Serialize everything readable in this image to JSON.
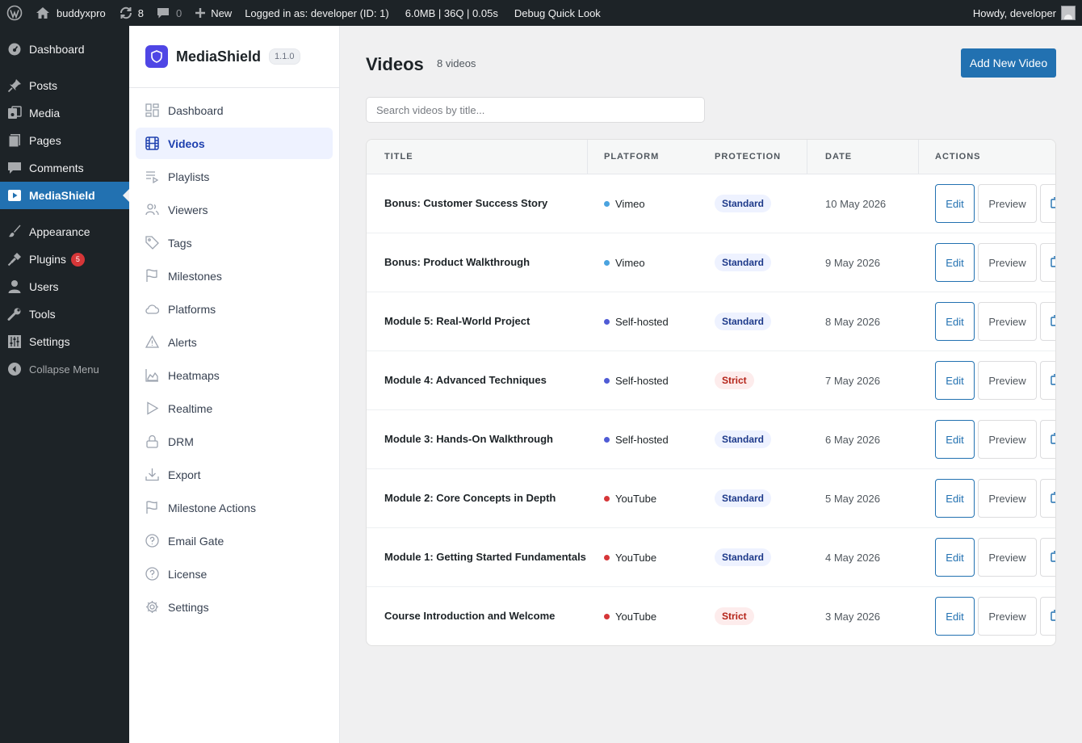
{
  "adminbar": {
    "site_name": "buddyxpro",
    "updates_count": "8",
    "comments_count": "0",
    "new_label": "New",
    "logged_in": "Logged in as: developer (ID: 1)",
    "stats": "6.0MB | 36Q | 0.05s",
    "debug": "Debug Quick Look",
    "howdy": "Howdy, developer"
  },
  "admin_menu": {
    "dashboard": "Dashboard",
    "posts": "Posts",
    "media": "Media",
    "pages": "Pages",
    "comments": "Comments",
    "mediashield": "MediaShield",
    "appearance": "Appearance",
    "plugins": "Plugins",
    "plugins_badge": "5",
    "users": "Users",
    "tools": "Tools",
    "settings": "Settings",
    "collapse": "Collapse Menu"
  },
  "plugin": {
    "name": "MediaShield",
    "version": "1.1.0",
    "nav": [
      {
        "label": "Dashboard"
      },
      {
        "label": "Videos"
      },
      {
        "label": "Playlists"
      },
      {
        "label": "Viewers"
      },
      {
        "label": "Tags"
      },
      {
        "label": "Milestones"
      },
      {
        "label": "Platforms"
      },
      {
        "label": "Alerts"
      },
      {
        "label": "Heatmaps"
      },
      {
        "label": "Realtime"
      },
      {
        "label": "DRM"
      },
      {
        "label": "Export"
      },
      {
        "label": "Milestone Actions"
      },
      {
        "label": "Email Gate"
      },
      {
        "label": "License"
      },
      {
        "label": "Settings"
      }
    ]
  },
  "page": {
    "title": "Videos",
    "count": "8 videos",
    "add_button": "Add New Video",
    "search_placeholder": "Search videos by title..."
  },
  "table": {
    "headers": {
      "title": "TITLE",
      "platform": "PLATFORM",
      "protection": "PROTECTION",
      "date": "DATE",
      "actions": "ACTIONS"
    },
    "edit_label": "Edit",
    "preview_label": "Preview",
    "platform_colors": {
      "Vimeo": "#4aa3df",
      "Self-hosted": "#4f5bd5",
      "YouTube": "#d63638"
    },
    "rows": [
      {
        "title": "Bonus: Customer Success Story",
        "platform": "Vimeo",
        "protection": "Standard",
        "date": "10 May 2026"
      },
      {
        "title": "Bonus: Product Walkthrough",
        "platform": "Vimeo",
        "protection": "Standard",
        "date": "9 May 2026"
      },
      {
        "title": "Module 5: Real-World Project",
        "platform": "Self-hosted",
        "protection": "Standard",
        "date": "8 May 2026"
      },
      {
        "title": "Module 4: Advanced Techniques",
        "platform": "Self-hosted",
        "protection": "Strict",
        "date": "7 May 2026"
      },
      {
        "title": "Module 3: Hands-On Walkthrough",
        "platform": "Self-hosted",
        "protection": "Standard",
        "date": "6 May 2026"
      },
      {
        "title": "Module 2: Core Concepts in Depth",
        "platform": "YouTube",
        "protection": "Standard",
        "date": "5 May 2026"
      },
      {
        "title": "Module 1: Getting Started Fundamentals",
        "platform": "YouTube",
        "protection": "Standard",
        "date": "4 May 2026"
      },
      {
        "title": "Course Introduction and Welcome",
        "platform": "YouTube",
        "protection": "Strict",
        "date": "3 May 2026"
      }
    ]
  }
}
